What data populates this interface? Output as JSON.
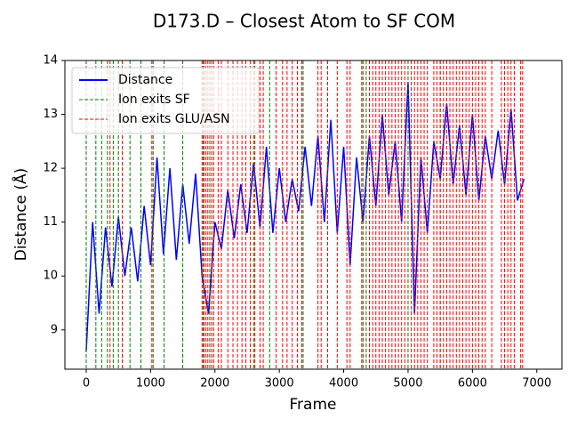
{
  "chart_data": {
    "type": "line",
    "title": "D173.D – Closest Atom to SF COM",
    "x_label": "Frame",
    "y_label": "Distance (Å)",
    "xlim": [
      -331,
      7390
    ],
    "ylim": [
      8.27,
      14
    ],
    "xticks": [
      0,
      1000,
      2000,
      3000,
      4000,
      5000,
      6000,
      7000
    ],
    "yticks": [
      9,
      10,
      11,
      12,
      13,
      14
    ],
    "grid": false,
    "legend": "upper left",
    "x": [
      0,
      100,
      200,
      300,
      400,
      500,
      600,
      700,
      800,
      900,
      1000,
      1100,
      1200,
      1300,
      1400,
      1500,
      1600,
      1700,
      1800,
      1900,
      2000,
      2100,
      2200,
      2300,
      2400,
      2500,
      2600,
      2700,
      2800,
      2900,
      3000,
      3100,
      3200,
      3300,
      3400,
      3500,
      3600,
      3700,
      3800,
      3900,
      4000,
      4100,
      4200,
      4300,
      4400,
      4500,
      4600,
      4700,
      4800,
      4900,
      5000,
      5100,
      5200,
      5300,
      5400,
      5500,
      5600,
      5700,
      5800,
      5900,
      6000,
      6100,
      6200,
      6300,
      6400,
      6500,
      6600,
      6700,
      6800
    ],
    "series": [
      {
        "name": "Distance",
        "color": "#0000ff",
        "values": [
          8.6,
          11.0,
          9.3,
          10.9,
          9.8,
          11.1,
          10.0,
          10.9,
          9.9,
          11.3,
          10.2,
          12.2,
          10.4,
          12.0,
          10.3,
          11.7,
          10.6,
          11.9,
          10.0,
          9.3,
          11.0,
          10.5,
          11.6,
          10.7,
          11.7,
          10.8,
          12.1,
          10.9,
          12.4,
          10.8,
          12.0,
          11.0,
          11.8,
          11.2,
          12.4,
          11.3,
          12.6,
          11.0,
          12.9,
          10.8,
          12.4,
          10.2,
          12.2,
          11.0,
          12.6,
          11.3,
          13.0,
          11.5,
          12.5,
          11.0,
          13.6,
          9.3,
          12.2,
          10.8,
          12.5,
          11.8,
          13.2,
          11.7,
          12.8,
          11.5,
          13.0,
          11.4,
          12.6,
          11.8,
          12.7,
          11.7,
          13.1,
          11.4,
          11.8
        ]
      },
      {
        "name": "Ion exits SF",
        "color": "#008000",
        "type": "vline",
        "x": [
          0,
          150,
          240,
          330,
          420,
          500,
          680,
          850,
          1040,
          1210,
          1500,
          1820,
          1920,
          2600,
          2850,
          3370,
          4280,
          4350,
          5000,
          5500
        ]
      },
      {
        "name": "Ion exits GLU/ASN",
        "color": "#ff0000",
        "type": "vline",
        "x": [
          370,
          560,
          1020,
          1800,
          1830,
          1860,
          1890,
          1950,
          1980,
          2050,
          2100,
          2200,
          2280,
          2350,
          2420,
          2480,
          2550,
          2620,
          2700,
          2750,
          2950,
          3050,
          3120,
          3200,
          3280,
          3350,
          3600,
          3650,
          3750,
          3900,
          4050,
          4100,
          4300,
          4400,
          4450,
          4500,
          4550,
          4600,
          4650,
          4700,
          4750,
          4800,
          4850,
          4900,
          4950,
          5050,
          5100,
          5150,
          5200,
          5250,
          5300,
          5400,
          5450,
          5500,
          5550,
          5600,
          5650,
          5700,
          5750,
          5800,
          5850,
          5900,
          5950,
          6000,
          6050,
          6100,
          6150,
          6200,
          6300,
          6450,
          6500,
          6550,
          6600,
          6650,
          6750,
          6780
        ]
      }
    ]
  }
}
